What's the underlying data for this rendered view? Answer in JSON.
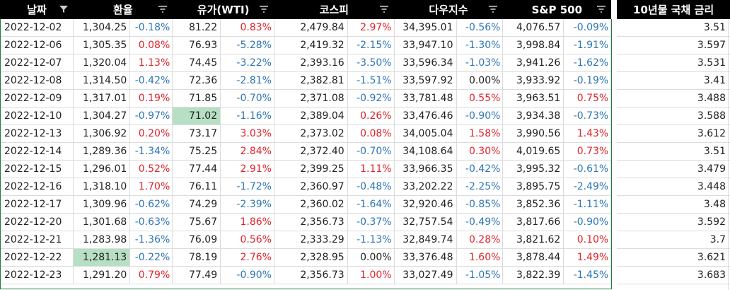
{
  "headers": [
    {
      "label": "날짜",
      "icon": "filter-active-icon"
    },
    {
      "label": "환율",
      "icon": "filter-icon"
    },
    {
      "label": "유가(WTI)",
      "icon": "filter-icon"
    },
    {
      "label": "코스피",
      "icon": "filter-icon"
    },
    {
      "label": "다우지수",
      "icon": "filter-icon"
    },
    {
      "label": "S&P 500",
      "icon": "filter-icon"
    },
    {
      "label": "10년물 국채 금리",
      "icon": ""
    }
  ],
  "rows": [
    {
      "date": "2022-12-02",
      "fx": "1,304.25",
      "fx_pct": "-0.18%",
      "wti": "81.22",
      "wti_pct": "0.83%",
      "kospi": "2,479.84",
      "kospi_pct": "2.97%",
      "dow": "34,395.01",
      "dow_pct": "-0.56%",
      "sp": "4,076.57",
      "sp_pct": "-0.09%",
      "bond": "3.51"
    },
    {
      "date": "2022-12-06",
      "fx": "1,305.35",
      "fx_pct": "0.08%",
      "wti": "76.93",
      "wti_pct": "-5.28%",
      "kospi": "2,419.32",
      "kospi_pct": "-2.15%",
      "dow": "33,947.10",
      "dow_pct": "-1.30%",
      "sp": "3,998.84",
      "sp_pct": "-1.91%",
      "bond": "3.597"
    },
    {
      "date": "2022-12-07",
      "fx": "1,320.04",
      "fx_pct": "1.13%",
      "wti": "74.45",
      "wti_pct": "-3.22%",
      "kospi": "2,393.16",
      "kospi_pct": "-3.50%",
      "dow": "33,596.34",
      "dow_pct": "-1.03%",
      "sp": "3,941.26",
      "sp_pct": "-1.62%",
      "bond": "3.531"
    },
    {
      "date": "2022-12-08",
      "fx": "1,314.50",
      "fx_pct": "-0.42%",
      "wti": "72.36",
      "wti_pct": "-2.81%",
      "kospi": "2,382.81",
      "kospi_pct": "-1.51%",
      "dow": "33,597.92",
      "dow_pct": "0.00%",
      "sp": "3,933.92",
      "sp_pct": "-0.19%",
      "bond": "3.41"
    },
    {
      "date": "2022-12-09",
      "fx": "1,317.01",
      "fx_pct": "0.19%",
      "wti": "71.85",
      "wti_pct": "-0.70%",
      "kospi": "2,371.08",
      "kospi_pct": "-0.92%",
      "dow": "33,781.48",
      "dow_pct": "0.55%",
      "sp": "3,963.51",
      "sp_pct": "0.75%",
      "bond": "3.488"
    },
    {
      "date": "2022-12-10",
      "fx": "1,304.27",
      "fx_pct": "-0.97%",
      "wti": "71.02",
      "wti_pct": "-1.16%",
      "kospi": "2,389.04",
      "kospi_pct": "0.26%",
      "dow": "33,476.46",
      "dow_pct": "-0.90%",
      "sp": "3,934.38",
      "sp_pct": "-0.73%",
      "bond": "3.588"
    },
    {
      "date": "2022-12-13",
      "fx": "1,306.92",
      "fx_pct": "0.20%",
      "wti": "73.17",
      "wti_pct": "3.03%",
      "kospi": "2,373.02",
      "kospi_pct": "0.08%",
      "dow": "34,005.04",
      "dow_pct": "1.58%",
      "sp": "3,990.56",
      "sp_pct": "1.43%",
      "bond": "3.612"
    },
    {
      "date": "2022-12-14",
      "fx": "1,289.36",
      "fx_pct": "-1.34%",
      "wti": "75.25",
      "wti_pct": "2.84%",
      "kospi": "2,372.40",
      "kospi_pct": "-0.70%",
      "dow": "34,108.64",
      "dow_pct": "0.30%",
      "sp": "4,019.65",
      "sp_pct": "0.73%",
      "bond": "3.51"
    },
    {
      "date": "2022-12-15",
      "fx": "1,296.01",
      "fx_pct": "0.52%",
      "wti": "77.44",
      "wti_pct": "2.91%",
      "kospi": "2,399.25",
      "kospi_pct": "1.11%",
      "dow": "33,966.35",
      "dow_pct": "-0.42%",
      "sp": "3,995.32",
      "sp_pct": "-0.61%",
      "bond": "3.479"
    },
    {
      "date": "2022-12-16",
      "fx": "1,318.10",
      "fx_pct": "1.70%",
      "wti": "76.11",
      "wti_pct": "-1.72%",
      "kospi": "2,360.97",
      "kospi_pct": "-0.48%",
      "dow": "33,202.22",
      "dow_pct": "-2.25%",
      "sp": "3,895.75",
      "sp_pct": "-2.49%",
      "bond": "3.448"
    },
    {
      "date": "2022-12-17",
      "fx": "1,309.96",
      "fx_pct": "-0.62%",
      "wti": "74.29",
      "wti_pct": "-2.39%",
      "kospi": "2,360.02",
      "kospi_pct": "-1.64%",
      "dow": "32,920.46",
      "dow_pct": "-0.85%",
      "sp": "3,852.36",
      "sp_pct": "-1.11%",
      "bond": "3.48"
    },
    {
      "date": "2022-12-20",
      "fx": "1,301.68",
      "fx_pct": "-0.63%",
      "wti": "75.67",
      "wti_pct": "1.86%",
      "kospi": "2,356.73",
      "kospi_pct": "-0.37%",
      "dow": "32,757.54",
      "dow_pct": "-0.49%",
      "sp": "3,817.66",
      "sp_pct": "-0.90%",
      "bond": "3.592"
    },
    {
      "date": "2022-12-21",
      "fx": "1,283.98",
      "fx_pct": "-1.36%",
      "wti": "76.09",
      "wti_pct": "0.56%",
      "kospi": "2,333.29",
      "kospi_pct": "-1.13%",
      "dow": "32,849.74",
      "dow_pct": "0.28%",
      "sp": "3,821.62",
      "sp_pct": "0.10%",
      "bond": "3.7"
    },
    {
      "date": "2022-12-22",
      "fx": "1,281.13",
      "fx_pct": "-0.22%",
      "wti": "78.19",
      "wti_pct": "2.76%",
      "kospi": "2,328.95",
      "kospi_pct": "0.00%",
      "dow": "33,376.48",
      "dow_pct": "1.60%",
      "sp": "3,878.44",
      "sp_pct": "1.49%",
      "bond": "3.621"
    },
    {
      "date": "2022-12-23",
      "fx": "1,291.20",
      "fx_pct": "0.79%",
      "wti": "77.49",
      "wti_pct": "-0.90%",
      "kospi": "2,356.73",
      "kospi_pct": "1.00%",
      "dow": "33,027.49",
      "dow_pct": "-1.05%",
      "sp": "3,822.39",
      "sp_pct": "-1.45%",
      "bond": "3.683"
    }
  ],
  "highlights": [
    {
      "row": 5,
      "col": "wti"
    },
    {
      "row": 13,
      "col": "fx"
    }
  ],
  "colors": {
    "positive": "#e0242b",
    "negative": "#2e75b6",
    "highlight": "#b7dfc4",
    "header_bg": "#000000",
    "outline": "#1f7a3f"
  }
}
